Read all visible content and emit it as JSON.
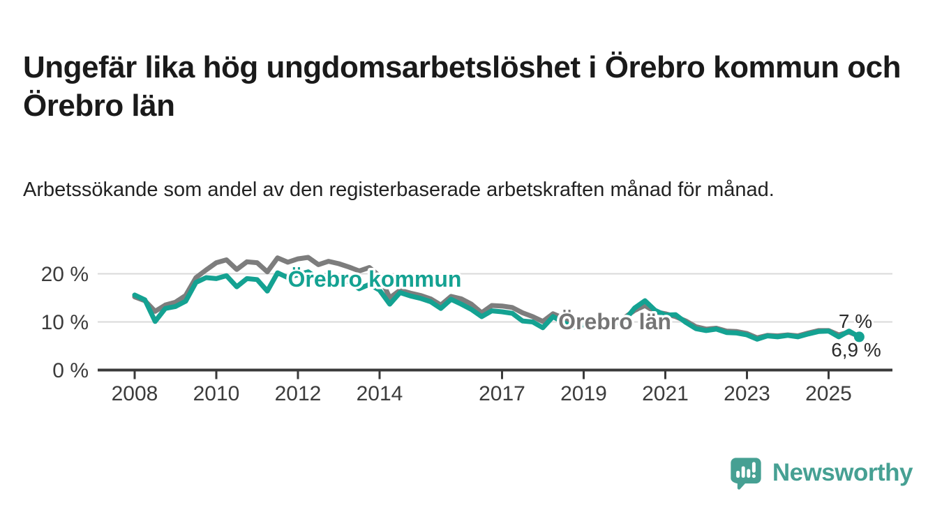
{
  "title": "Ungefär lika hög ungdomsarbetslöshet i Örebro kommun och Örebro län",
  "subtitle": "Arbetssökande som andel av den registerbaserade arbetskraften månad för månad.",
  "chart_data": {
    "type": "line",
    "xlabel": "",
    "ylabel": "%",
    "xlim": [
      2007.1,
      2026.6
    ],
    "ylim": [
      0,
      25
    ],
    "grid": "horizontal-only",
    "legend_position": "inline-labels-on-lines",
    "x_unit": "year (monthly observations)",
    "y_unit": "percent of registered labour force",
    "x": [
      2008.0,
      2008.25,
      2008.5,
      2008.75,
      2009.0,
      2009.25,
      2009.5,
      2009.75,
      2010.0,
      2010.25,
      2010.5,
      2010.75,
      2011.0,
      2011.25,
      2011.5,
      2011.75,
      2012.0,
      2012.25,
      2012.5,
      2012.75,
      2013.0,
      2013.25,
      2013.5,
      2013.75,
      2014.0,
      2014.25,
      2014.5,
      2014.75,
      2015.0,
      2015.25,
      2015.5,
      2015.75,
      2016.0,
      2016.25,
      2016.5,
      2016.75,
      2017.0,
      2017.25,
      2017.5,
      2017.75,
      2018.0,
      2018.25,
      2018.5,
      2018.75,
      2019.0,
      2019.25,
      2019.5,
      2019.75,
      2020.0,
      2020.25,
      2020.5,
      2020.75,
      2021.0,
      2021.25,
      2021.5,
      2021.75,
      2022.0,
      2022.25,
      2022.5,
      2022.75,
      2023.0,
      2023.25,
      2023.5,
      2023.75,
      2024.0,
      2024.25,
      2024.5,
      2024.75,
      2025.0,
      2025.25,
      2025.5,
      2025.75
    ],
    "series": [
      {
        "name": "Örebro län",
        "color": "#7d7d7d",
        "end_label": "7 %",
        "end_value": 7.0,
        "values": [
          15.2,
          14.4,
          12.2,
          13.5,
          14.1,
          15.5,
          19.2,
          20.8,
          22.3,
          22.9,
          20.9,
          22.5,
          22.3,
          20.4,
          23.3,
          22.4,
          23.1,
          23.4,
          21.9,
          22.6,
          22.1,
          21.4,
          20.6,
          21.3,
          19.5,
          15.0,
          16.6,
          16.0,
          15.5,
          14.8,
          13.5,
          15.3,
          14.8,
          13.7,
          11.9,
          13.4,
          13.3,
          13.0,
          11.9,
          11.1,
          10.1,
          11.7,
          10.8,
          10.1,
          10.4,
          10.3,
          9.8,
          10.2,
          10.9,
          12.4,
          13.4,
          12.1,
          11.7,
          11.1,
          10.2,
          9.0,
          8.5,
          8.7,
          8.1,
          8.0,
          7.6,
          6.7,
          7.2,
          7.1,
          7.3,
          7.1,
          7.7,
          8.2,
          8.2,
          7.3,
          7.9,
          7.0
        ]
      },
      {
        "name": "Örebro kommun",
        "color": "#14a292",
        "end_label": "6,9 %",
        "end_value": 6.9,
        "end_dot": true,
        "values": [
          15.6,
          14.6,
          10.1,
          12.8,
          13.2,
          14.3,
          18.2,
          19.2,
          19.0,
          19.6,
          17.3,
          19.0,
          18.8,
          16.4,
          20.2,
          19.2,
          19.8,
          20.4,
          19.0,
          19.9,
          19.4,
          18.3,
          16.9,
          17.8,
          16.6,
          13.7,
          16.1,
          15.4,
          14.9,
          14.2,
          12.8,
          14.7,
          13.7,
          12.6,
          11.1,
          12.3,
          12.1,
          11.8,
          10.2,
          10.0,
          8.8,
          11.1,
          9.9,
          8.9,
          9.4,
          9.6,
          9.1,
          9.6,
          10.3,
          12.9,
          14.4,
          12.4,
          11.4,
          11.5,
          9.9,
          8.6,
          8.2,
          8.5,
          7.8,
          7.7,
          7.3,
          6.4,
          7.1,
          6.9,
          7.2,
          6.9,
          7.5,
          8.0,
          8.1,
          6.9,
          8.1,
          6.9
        ]
      }
    ],
    "x_ticks": [
      {
        "year": 2008,
        "label": "2008"
      },
      {
        "year": 2010,
        "label": "2010"
      },
      {
        "year": 2012,
        "label": "2012"
      },
      {
        "year": 2014,
        "label": "2014"
      },
      {
        "year": 2017,
        "label": "2017"
      },
      {
        "year": 2019,
        "label": "2019"
      },
      {
        "year": 2021,
        "label": "2021"
      },
      {
        "year": 2023,
        "label": "2023"
      },
      {
        "year": 2025,
        "label": "2025"
      }
    ],
    "y_ticks": [
      {
        "value": 0,
        "label": "0 %"
      },
      {
        "value": 10,
        "label": "10 %"
      },
      {
        "value": 20,
        "label": "20 %"
      }
    ]
  },
  "annotations": {
    "kommun_series_label": "Örebro kommun",
    "lan_series_label": "Örebro län",
    "lan_end_value_label": "7 %",
    "kommun_end_value_label": "6,9 %"
  },
  "footer": {
    "brand_name": "Newsworthy"
  },
  "colors": {
    "kommun_line": "#14a292",
    "lan_line": "#7d7d7d",
    "title_text": "#1a1a1a",
    "axis_text": "#3c3c3c",
    "axis_line": "#3a3a3a",
    "gridline": "#d9d9d9",
    "brand_teal": "#46a093",
    "background": "#ffffff"
  }
}
